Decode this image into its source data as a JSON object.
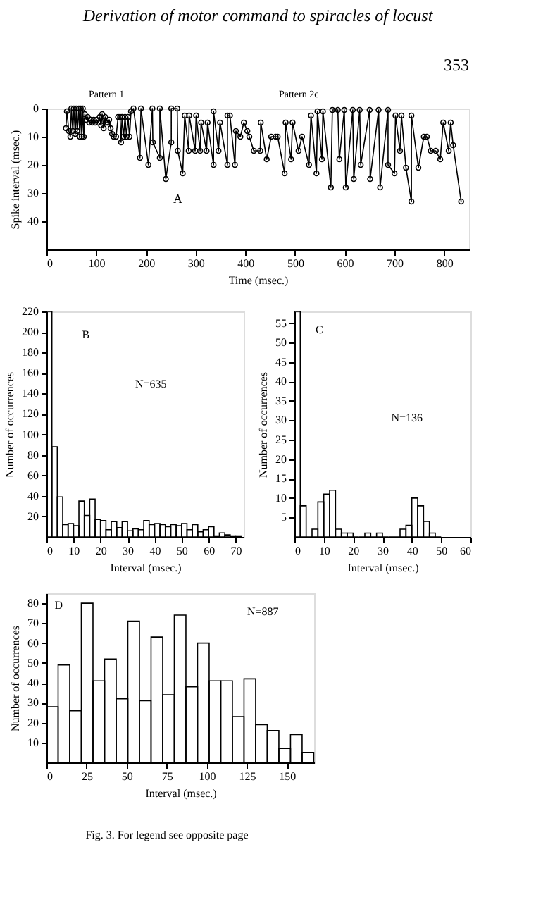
{
  "chart_data": [
    {
      "type": "line",
      "title": "Derivation of motor command to spiracles of locust",
      "xlabel": "Time (msec.)",
      "ylabel": "Spike interval (msec.)",
      "annotations": [
        "353",
        "A",
        "Pattern 1",
        "Pattern 2c"
      ],
      "xlim": [
        0,
        850
      ],
      "xticks": [
        0,
        100,
        200,
        300,
        400,
        500,
        600,
        700,
        800
      ],
      "ylim": [
        50,
        0
      ],
      "yticks": [
        0,
        10,
        20,
        30,
        40
      ],
      "grid": false,
      "marker": "circle",
      "line_style": "solid",
      "series": [
        {
          "color": "#000000",
          "x": [
            39,
            41,
            45,
            48,
            50,
            53,
            55,
            58,
            60,
            62,
            65,
            67,
            69,
            71,
            73,
            75,
            77,
            80,
            83,
            86,
            89,
            92,
            95,
            98,
            101,
            104,
            107,
            110,
            112,
            115,
            118,
            120,
            123,
            126,
            129,
            132,
            135,
            140,
            144,
            148,
            150,
            152,
            155,
            158,
            161,
            164,
            167,
            170,
            175,
            188,
            190,
            205,
            213,
            214,
            228,
            228,
            240,
            251,
            251,
            263,
            264,
            274,
            278,
            286,
            287,
            299,
            301,
            309,
            311,
            322,
            324,
            336,
            336,
            346,
            349,
            364,
            364,
            369,
            379,
            381,
            390,
            397,
            404,
            408,
            417,
            430,
            431,
            443,
            452,
            461,
            465,
            479,
            481,
            492,
            495,
            507,
            514,
            528,
            532,
            543,
            545,
            554,
            556,
            572,
            575,
            586,
            589,
            599,
            602,
            616,
            618,
            630,
            632,
            650,
            651,
            668,
            671,
            687,
            687,
            700,
            702,
            711,
            714,
            723,
            734,
            734,
            748,
            759,
            765,
            773,
            783,
            792,
            798,
            809,
            813,
            818,
            834
          ],
          "values": [
            7,
            1,
            8,
            10,
            0,
            8,
            0,
            9,
            0,
            8,
            0,
            10,
            0,
            10,
            0,
            10,
            2,
            4,
            3,
            5,
            4,
            5,
            4,
            5,
            4,
            5,
            3,
            6,
            2,
            7,
            3,
            5,
            5,
            4,
            7,
            9,
            10,
            10,
            3,
            3,
            12,
            3,
            10,
            3,
            10,
            3,
            10,
            1,
            0,
            17.5,
            0,
            20,
            0,
            12,
            17.5,
            0,
            25,
            12,
            0,
            0,
            15,
            23,
            2.5,
            15,
            2.5,
            15,
            2.5,
            15,
            5,
            15,
            5,
            20,
            1,
            15,
            5,
            20,
            2.5,
            2.5,
            20,
            8,
            10,
            5,
            8,
            10,
            15,
            15,
            5,
            18,
            10,
            10,
            10,
            23,
            5,
            18,
            5,
            15,
            10,
            20,
            2.5,
            23,
            1,
            18,
            1,
            28,
            0.5,
            0.5,
            18,
            0.5,
            28,
            0.5,
            25,
            0.5,
            20,
            0.5,
            25,
            0.5,
            28,
            0.5,
            20,
            23,
            2.5,
            15,
            2.5,
            21,
            33,
            2.5,
            21,
            10,
            10,
            15,
            15,
            18,
            5,
            15,
            5,
            13,
            33
          ]
        }
      ]
    },
    {
      "type": "histogram",
      "xlabel": "Interval (msec.)",
      "ylabel": "Number of occurrences",
      "annotations": [
        "B",
        "N=635"
      ],
      "xlim": [
        0,
        73
      ],
      "xticks": [
        0,
        10,
        20,
        30,
        40,
        50,
        60,
        70
      ],
      "ylim": [
        0,
        220
      ],
      "yticks": [
        20,
        40,
        60,
        80,
        100,
        120,
        140,
        160,
        180,
        200,
        220
      ],
      "grid": false,
      "color": "#000000",
      "bins": [
        0,
        2,
        4,
        6,
        8,
        10,
        12,
        14,
        16,
        18,
        20,
        22,
        24,
        26,
        28,
        30,
        32,
        34,
        36,
        38,
        40,
        42,
        44,
        46,
        48,
        50,
        52,
        54,
        56,
        58,
        60,
        62,
        64,
        66,
        68,
        70,
        72
      ],
      "values": [
        220,
        88,
        39,
        12,
        13,
        11,
        35,
        21,
        37,
        17,
        16,
        7,
        15,
        9,
        15,
        6,
        8,
        7,
        16,
        12,
        13,
        12,
        10,
        12,
        11,
        13,
        7,
        12,
        5,
        7,
        10,
        1,
        4,
        2,
        1,
        1
      ]
    },
    {
      "type": "histogram",
      "xlabel": "Interval (msec.)",
      "ylabel": "Number of occurrences",
      "annotations": [
        "C",
        "N=136"
      ],
      "xlim": [
        0,
        60
      ],
      "xticks": [
        0,
        10,
        20,
        30,
        40,
        50,
        60
      ],
      "ylim": [
        0,
        58
      ],
      "yticks": [
        5,
        10,
        15,
        20,
        25,
        30,
        35,
        40,
        45,
        50,
        55
      ],
      "grid": false,
      "color": "#000000",
      "bins": [
        0,
        2,
        4,
        6,
        8,
        10,
        12,
        14,
        16,
        18,
        20,
        22,
        24,
        26,
        28,
        30,
        32,
        34,
        36,
        38,
        40,
        42,
        44,
        46,
        48,
        50
      ],
      "values": [
        58,
        8,
        0,
        2,
        9,
        11,
        12,
        2,
        1,
        1,
        0,
        0,
        1,
        0,
        1,
        0,
        0,
        0,
        2,
        3,
        10,
        8,
        4,
        1,
        0
      ]
    },
    {
      "type": "histogram",
      "xlabel": "Interval (msec.)",
      "ylabel": "Number of occurrences",
      "annotations": [
        "D",
        "N=887",
        "Fig. 3.   For legend see opposite page"
      ],
      "xlim": [
        0,
        167
      ],
      "xticks": [
        0,
        25,
        50,
        75,
        100,
        125,
        150
      ],
      "ylim": [
        0,
        85
      ],
      "yticks": [
        10,
        20,
        30,
        40,
        50,
        60,
        70,
        80
      ],
      "grid": false,
      "color": "#000000",
      "bins": [
        0,
        7.25,
        14.5,
        21.75,
        29,
        36.25,
        43.5,
        50.75,
        58,
        65.25,
        72.5,
        79.75,
        87,
        94.25,
        101.5,
        108.75,
        116,
        123.25,
        130.5,
        137.75,
        145,
        152.25,
        159.5,
        166.75
      ],
      "values": [
        28,
        49,
        26,
        80,
        41,
        52,
        32,
        71,
        31,
        63,
        34,
        74,
        38,
        60,
        41,
        41,
        23,
        42,
        19,
        16,
        7,
        14,
        5
      ]
    }
  ]
}
